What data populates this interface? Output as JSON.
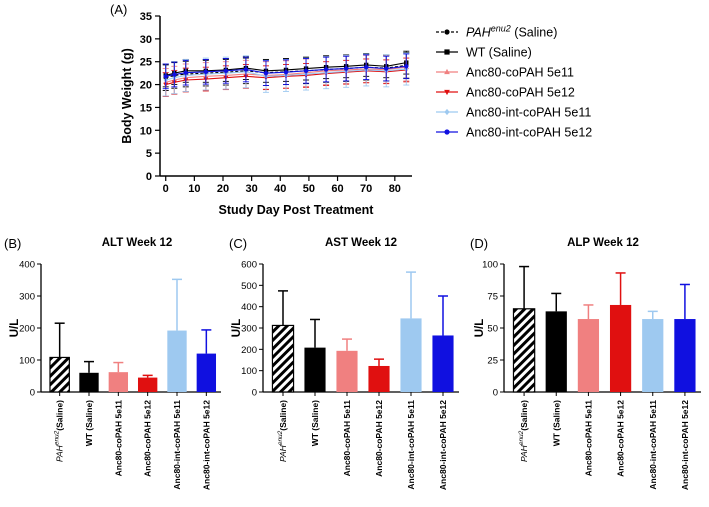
{
  "colors": {
    "pah": "#000000",
    "wt": "#000000",
    "a80_5e11": "#f08080",
    "a80_5e12": "#e01010",
    "int_5e11": "#9ec9f0",
    "int_5e12": "#1010e0"
  },
  "chart_data": [
    {
      "id": "A",
      "panel_label": "(A)",
      "type": "line",
      "title": "",
      "xlabel": "Study Day  Post Treatment",
      "ylabel": "Body Weight (g)",
      "xlim": [
        -2,
        86
      ],
      "ylim": [
        0,
        35
      ],
      "xticks": [
        0,
        10,
        20,
        30,
        40,
        50,
        60,
        70,
        80
      ],
      "yticks": [
        0,
        5,
        10,
        15,
        20,
        25,
        30,
        35
      ],
      "x": [
        0,
        3,
        7,
        14,
        21,
        28,
        35,
        42,
        49,
        56,
        63,
        70,
        77,
        84
      ],
      "legend_position": "right",
      "series": [
        {
          "key": "pah",
          "name": "PAH",
          "name_sup": "enu2",
          "name_suffix": " (Saline)",
          "marker": "circle",
          "dash": true,
          "values": [
            21.5,
            22.0,
            22.3,
            22.5,
            22.7,
            23.0,
            22.6,
            22.8,
            23.0,
            23.3,
            23.5,
            23.8,
            23.6,
            24.2
          ],
          "err": 2.8
        },
        {
          "key": "wt",
          "name": "WT (Saline)",
          "name_sup": "",
          "name_suffix": "",
          "marker": "square",
          "dash": false,
          "values": [
            22.0,
            22.5,
            23.0,
            23.0,
            23.2,
            23.6,
            23.0,
            23.2,
            23.5,
            23.8,
            24.0,
            24.3,
            24.0,
            24.8
          ],
          "err": 2.5
        },
        {
          "key": "a80_5e11",
          "name": "Anc80-coPAH 5e11",
          "name_sup": "",
          "name_suffix": "",
          "marker": "triangle-up",
          "dash": false,
          "values": [
            20.5,
            21.0,
            21.5,
            21.8,
            22.0,
            22.3,
            22.0,
            22.2,
            22.6,
            23.0,
            23.2,
            23.4,
            23.3,
            23.8
          ],
          "err": 3.0
        },
        {
          "key": "a80_5e12",
          "name": "Anc80-coPAH 5e12",
          "name_sup": "",
          "name_suffix": "",
          "marker": "triangle-down",
          "dash": false,
          "values": [
            20.0,
            20.5,
            21.0,
            21.2,
            21.5,
            21.8,
            21.5,
            21.8,
            22.0,
            22.4,
            22.7,
            23.0,
            22.8,
            23.2
          ],
          "err": 2.6
        },
        {
          "key": "int_5e11",
          "name": "Anc80-int-coPAH 5e11",
          "name_sup": "",
          "name_suffix": "",
          "marker": "diamond",
          "dash": false,
          "values": [
            21.0,
            21.5,
            22.0,
            22.3,
            22.5,
            22.8,
            21.8,
            22.0,
            22.3,
            22.6,
            22.9,
            23.2,
            23.0,
            23.4
          ],
          "err": 3.5
        },
        {
          "key": "int_5e12",
          "name": "Anc80-int-coPAH 5e12",
          "name_sup": "",
          "name_suffix": "",
          "marker": "circle",
          "dash": false,
          "values": [
            21.8,
            22.2,
            22.6,
            22.8,
            23.0,
            23.3,
            22.5,
            22.7,
            23.0,
            23.3,
            23.5,
            23.8,
            23.5,
            24.0
          ],
          "err": 2.7
        }
      ]
    },
    {
      "id": "B",
      "panel_label": "(B)",
      "type": "bar",
      "title": "ALT Week 12",
      "ylabel": "U/L",
      "ylim": [
        0,
        400
      ],
      "yticks": [
        0,
        100,
        200,
        300,
        400
      ],
      "categories": [
        "PAH|enu2|(Saline)",
        "WT (Saline)",
        "Anc80-coPAH 5e11",
        "Anc80-coPAH 5e12",
        "Anc80-int-coPAH 5e11",
        "Anc80-int-coPAH 5e12"
      ],
      "values": [
        108,
        60,
        62,
        45,
        192,
        120
      ],
      "errors": [
        107,
        35,
        30,
        7,
        160,
        74
      ],
      "color_keys": [
        "pah",
        "wt",
        "a80_5e11",
        "a80_5e12",
        "int_5e11",
        "int_5e12"
      ]
    },
    {
      "id": "C",
      "panel_label": "(C)",
      "type": "bar",
      "title": "AST Week 12",
      "ylabel": "U/L",
      "ylim": [
        0,
        600
      ],
      "yticks": [
        0,
        100,
        200,
        300,
        400,
        500,
        600
      ],
      "categories": [
        "PAH|enu2|(Saline)",
        "WT (Saline)",
        "Anc80-coPAH 5e11",
        "Anc80-coPAH 5e12",
        "Anc80-int-coPAH 5e11",
        "Anc80-int-coPAH 5e12"
      ],
      "values": [
        312,
        208,
        193,
        122,
        345,
        265
      ],
      "errors": [
        162,
        132,
        55,
        32,
        217,
        185
      ],
      "color_keys": [
        "pah",
        "wt",
        "a80_5e11",
        "a80_5e12",
        "int_5e11",
        "int_5e12"
      ]
    },
    {
      "id": "D",
      "panel_label": "(D)",
      "type": "bar",
      "title": "ALP Week 12",
      "ylabel": "U/L",
      "ylim": [
        0,
        100
      ],
      "yticks": [
        0,
        25,
        50,
        75,
        100
      ],
      "categories": [
        "PAH|enu2|(Saline)",
        "WT (Saline)",
        "Anc80-coPAH 5e11",
        "Anc80-coPAH 5e12",
        "Anc80-int-coPAH 5e11",
        "Anc80-int-coPAH 5e12"
      ],
      "values": [
        65,
        63,
        57,
        68,
        57,
        57
      ],
      "errors": [
        33,
        14,
        11,
        25,
        6,
        27
      ],
      "color_keys": [
        "pah",
        "wt",
        "a80_5e11",
        "a80_5e12",
        "int_5e11",
        "int_5e12"
      ]
    }
  ]
}
